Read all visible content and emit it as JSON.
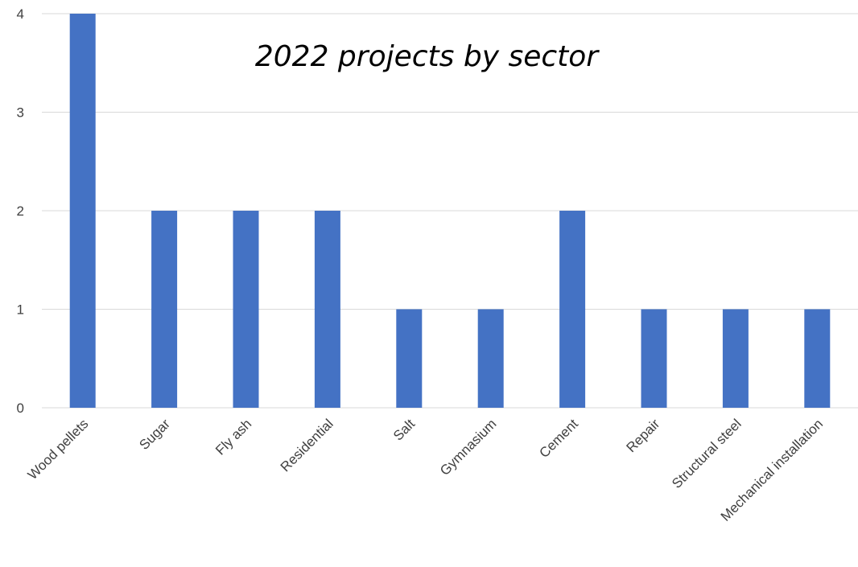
{
  "chart_data": {
    "type": "bar",
    "title": "2022 projects by sector",
    "xlabel": "",
    "ylabel": "",
    "categories": [
      "Wood pellets",
      "Sugar",
      "Fly ash",
      "Residential",
      "Salt",
      "Gymnasium",
      "Cement",
      "Repair",
      "Structural steel",
      "Mechanical installation"
    ],
    "values": [
      4,
      2,
      2,
      2,
      1,
      1,
      2,
      1,
      1,
      1
    ],
    "ylim": [
      0,
      4
    ],
    "yticks": [
      0,
      1,
      2,
      3,
      4
    ],
    "grid": true,
    "legend": "none",
    "bar_color": "#4472C4",
    "grid_color": "#D9D9D9"
  }
}
